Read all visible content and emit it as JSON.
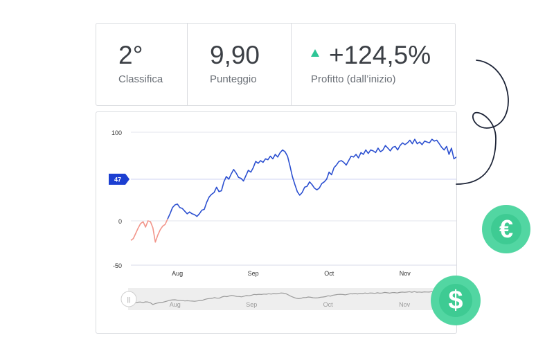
{
  "stats": {
    "rank": {
      "value": "2°",
      "label": "Classifica"
    },
    "score": {
      "value": "9,90",
      "label": "Punteggio"
    },
    "profit": {
      "value": "+124,5%",
      "label": "Profitto (dall’inizio)",
      "trend_icon": "triangle-up-icon"
    }
  },
  "coins": {
    "euro": "€",
    "dollar": "$"
  },
  "colors": {
    "line_main": "#2b4fd0",
    "line_negative": "#f2958a",
    "marker": "#1c3fd1",
    "navigator_line": "#9a9a9a",
    "navigator_bg": "#eeeeee",
    "coin": "#52d6a2",
    "trend": "#2ec596"
  },
  "chart_data": {
    "type": "line",
    "y_ticks": [
      100,
      0,
      -50
    ],
    "ylim": [
      -50,
      100
    ],
    "x_labels": [
      "Aug",
      "Sep",
      "Oct",
      "Nov"
    ],
    "x_label_positions": [
      12,
      43,
      74,
      105
    ],
    "xlim": [
      -7,
      126
    ],
    "marker": {
      "value": 47,
      "label": "47"
    },
    "navigator_handle": "||",
    "series": [
      {
        "color_key": "line_negative",
        "x": [
          -7,
          -6,
          -5,
          -4,
          -3,
          -2,
          -1,
          0,
          1,
          2,
          3,
          4,
          5,
          6,
          7,
          8
        ],
        "y": [
          -22,
          -20,
          -14,
          -8,
          -3,
          -1,
          -7,
          0,
          -1,
          -8,
          -24,
          -16,
          -10,
          -6,
          -4,
          2
        ]
      },
      {
        "color_key": "line_main",
        "x": [
          8,
          9,
          10,
          11,
          12,
          13,
          14,
          15,
          16,
          17,
          18,
          19,
          20,
          21,
          22,
          23,
          24,
          25,
          26,
          27,
          28,
          29,
          30,
          31,
          32,
          33,
          34,
          35,
          36,
          37,
          38,
          39,
          40,
          41,
          42,
          43,
          44,
          45,
          46,
          47,
          48,
          49,
          50,
          51,
          52,
          53,
          54,
          55,
          56,
          57,
          58,
          59,
          60,
          61,
          62,
          63,
          64,
          65,
          66,
          67,
          68,
          69,
          70,
          71,
          72,
          73,
          74,
          75,
          76,
          77,
          78,
          79,
          80,
          81,
          82,
          83,
          84,
          85,
          86,
          87,
          88,
          89,
          90,
          91,
          92,
          93,
          94,
          95,
          96,
          97,
          98,
          99,
          100,
          101,
          102,
          103,
          104,
          105,
          106,
          107,
          108,
          109,
          110,
          111,
          112,
          113,
          114,
          115,
          116,
          117,
          118,
          119,
          120,
          121,
          122,
          123,
          124,
          125,
          126
        ],
        "y": [
          2,
          8,
          15,
          18,
          19,
          15,
          14,
          11,
          8,
          10,
          8,
          7,
          5,
          8,
          12,
          13,
          21,
          27,
          30,
          32,
          38,
          33,
          34,
          44,
          50,
          47,
          53,
          58,
          54,
          49,
          48,
          45,
          51,
          57,
          55,
          60,
          67,
          65,
          68,
          66,
          70,
          69,
          73,
          70,
          75,
          72,
          77,
          80,
          78,
          73,
          62,
          50,
          41,
          33,
          29,
          32,
          38,
          39,
          44,
          41,
          37,
          35,
          37,
          42,
          44,
          47,
          55,
          52,
          60,
          63,
          67,
          68,
          66,
          63,
          68,
          73,
          72,
          75,
          71,
          77,
          75,
          80,
          76,
          80,
          79,
          77,
          82,
          78,
          80,
          85,
          82,
          79,
          83,
          84,
          80,
          85,
          88,
          86,
          88,
          91,
          87,
          92,
          87,
          89,
          86,
          90,
          89,
          88,
          92,
          90,
          91,
          87,
          83,
          80,
          84,
          75,
          82,
          70,
          72
        ]
      }
    ]
  }
}
